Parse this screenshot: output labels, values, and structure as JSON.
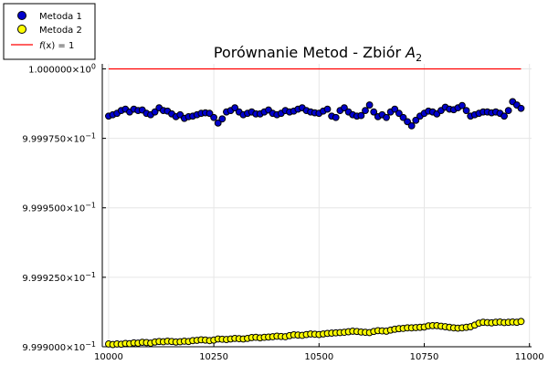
{
  "chart_data": {
    "type": "scatter",
    "title_text": "Porównanie Metod - Zbiór ",
    "title_symbol": "A",
    "title_subscript": "2",
    "xlabel": "",
    "ylabel": "",
    "xlim": [
      9985,
      11005
    ],
    "ylim": [
      0.9999,
      1.0000018
    ],
    "x_ticks": [
      10000,
      10250,
      10500,
      10750,
      11000
    ],
    "x_tick_labels": [
      "10000",
      "10250",
      "10500",
      "10750",
      "11000"
    ],
    "y_ticks": [
      0.9999,
      0.999925,
      0.99995,
      0.999975,
      1.0
    ],
    "y_tick_mantissas": [
      "9.999000",
      "9.999250",
      "9.999500",
      "9.999750",
      "1.000000"
    ],
    "y_tick_exponents": [
      "−1",
      "−1",
      "−1",
      "−1",
      "0"
    ],
    "y_tick_base": "×10",
    "grid": true,
    "legend_position": "top-left",
    "x": [
      10000,
      10010,
      10020,
      10030,
      10040,
      10050,
      10060,
      10070,
      10080,
      10090,
      10100,
      10110,
      10120,
      10130,
      10140,
      10150,
      10160,
      10170,
      10180,
      10190,
      10200,
      10210,
      10220,
      10230,
      10240,
      10250,
      10260,
      10270,
      10280,
      10290,
      10300,
      10310,
      10320,
      10330,
      10340,
      10350,
      10360,
      10370,
      10380,
      10390,
      10400,
      10410,
      10420,
      10430,
      10440,
      10450,
      10460,
      10470,
      10480,
      10490,
      10500,
      10510,
      10520,
      10530,
      10540,
      10550,
      10560,
      10570,
      10580,
      10590,
      10600,
      10610,
      10620,
      10630,
      10640,
      10650,
      10660,
      10670,
      10680,
      10690,
      10700,
      10710,
      10720,
      10730,
      10740,
      10750,
      10760,
      10770,
      10780,
      10790,
      10800,
      10810,
      10820,
      10830,
      10840,
      10850,
      10860,
      10870,
      10880,
      10890,
      10900,
      10910,
      10920,
      10930,
      10940,
      10950,
      10960,
      10970,
      10980
    ],
    "series": [
      {
        "name": "Metoda 1",
        "kind": "scatter",
        "fill": "#0000cc",
        "stroke": "#000000",
        "x": [
          10000,
          10010,
          10020,
          10030,
          10040,
          10050,
          10060,
          10070,
          10080,
          10090,
          10100,
          10110,
          10120,
          10130,
          10140,
          10150,
          10160,
          10170,
          10180,
          10190,
          10200,
          10210,
          10220,
          10230,
          10240,
          10250,
          10260,
          10270,
          10280,
          10290,
          10300,
          10310,
          10320,
          10330,
          10340,
          10350,
          10360,
          10370,
          10380,
          10390,
          10400,
          10410,
          10420,
          10430,
          10440,
          10450,
          10460,
          10470,
          10480,
          10490,
          10500,
          10510,
          10520,
          10530,
          10540,
          10550,
          10560,
          10570,
          10580,
          10590,
          10600,
          10610,
          10620,
          10630,
          10640,
          10650,
          10660,
          10670,
          10680,
          10690,
          10700,
          10710,
          10720,
          10730,
          10740,
          10750,
          10760,
          10770,
          10780,
          10790,
          10800,
          10810,
          10820,
          10830,
          10840,
          10850,
          10860,
          10870,
          10880,
          10890,
          10900,
          10910,
          10920,
          10930,
          10940,
          10950,
          10960,
          10970,
          10980
        ],
        "values": [
          0.999983,
          0.9999835,
          0.999984,
          0.999985,
          0.9999855,
          0.9999845,
          0.9999855,
          0.999985,
          0.9999852,
          0.999984,
          0.9999835,
          0.9999845,
          0.999986,
          0.999985,
          0.9999848,
          0.9999838,
          0.9999828,
          0.9999835,
          0.9999822,
          0.9999828,
          0.999983,
          0.9999835,
          0.999984,
          0.9999842,
          0.999984,
          0.9999825,
          0.9999805,
          0.999982,
          0.9999845,
          0.999985,
          0.999986,
          0.9999845,
          0.9999835,
          0.999984,
          0.9999845,
          0.9999838,
          0.9999838,
          0.9999845,
          0.9999852,
          0.999984,
          0.9999835,
          0.999984,
          0.999985,
          0.9999845,
          0.9999848,
          0.9999855,
          0.999986,
          0.999985,
          0.9999845,
          0.9999842,
          0.999984,
          0.9999848,
          0.9999855,
          0.999983,
          0.9999825,
          0.999985,
          0.999986,
          0.9999845,
          0.9999835,
          0.999983,
          0.9999832,
          0.999985,
          0.999987,
          0.9999845,
          0.9999828,
          0.9999835,
          0.9999825,
          0.9999845,
          0.9999855,
          0.999984,
          0.9999825,
          0.999981,
          0.9999795,
          0.9999815,
          0.999983,
          0.999984,
          0.9999848,
          0.9999845,
          0.9999838,
          0.999985,
          0.9999862,
          0.9999855,
          0.9999853,
          0.999986,
          0.9999868,
          0.999985,
          0.999983,
          0.9999835,
          0.999984,
          0.9999845,
          0.9999845,
          0.9999842,
          0.9999845,
          0.999984,
          0.999983,
          0.999985,
          0.9999882,
          0.999987,
          0.9999858
        ]
      },
      {
        "name": "Metoda 2",
        "kind": "scatter",
        "fill": "#ffff00",
        "stroke": "#000000",
        "x": [
          10000,
          10010,
          10020,
          10030,
          10040,
          10050,
          10060,
          10070,
          10080,
          10090,
          10100,
          10110,
          10120,
          10130,
          10140,
          10150,
          10160,
          10170,
          10180,
          10190,
          10200,
          10210,
          10220,
          10230,
          10240,
          10250,
          10260,
          10270,
          10280,
          10290,
          10300,
          10310,
          10320,
          10330,
          10340,
          10350,
          10360,
          10370,
          10380,
          10390,
          10400,
          10410,
          10420,
          10430,
          10440,
          10450,
          10460,
          10470,
          10480,
          10490,
          10500,
          10510,
          10520,
          10530,
          10540,
          10550,
          10560,
          10570,
          10580,
          10590,
          10600,
          10610,
          10620,
          10630,
          10640,
          10650,
          10660,
          10670,
          10680,
          10690,
          10700,
          10710,
          10720,
          10730,
          10740,
          10750,
          10760,
          10770,
          10780,
          10790,
          10800,
          10810,
          10820,
          10830,
          10840,
          10850,
          10860,
          10870,
          10880,
          10890,
          10900,
          10910,
          10920,
          10930,
          10940,
          10950,
          10960,
          10970,
          10980
        ],
        "values": [
          0.999901,
          0.9999008,
          0.999901,
          0.9999009,
          0.9999012,
          0.9999011,
          0.9999014,
          0.9999013,
          0.9999016,
          0.9999015,
          0.9999013,
          0.9999017,
          0.9999019,
          0.9999018,
          0.999902,
          0.9999019,
          0.9999017,
          0.9999018,
          0.999902,
          0.9999019,
          0.9999022,
          0.9999023,
          0.9999025,
          0.9999024,
          0.9999022,
          0.9999024,
          0.9999028,
          0.9999027,
          0.9999026,
          0.9999028,
          0.999903,
          0.9999029,
          0.9999028,
          0.999903,
          0.9999033,
          0.9999034,
          0.9999032,
          0.9999034,
          0.9999035,
          0.9999036,
          0.9999038,
          0.9999037,
          0.9999036,
          0.999904,
          0.9999043,
          0.9999042,
          0.9999041,
          0.9999044,
          0.9999046,
          0.9999045,
          0.9999044,
          0.9999046,
          0.9999048,
          0.9999049,
          0.999905,
          0.9999051,
          0.9999052,
          0.9999054,
          0.9999056,
          0.9999055,
          0.9999053,
          0.9999052,
          0.9999051,
          0.9999055,
          0.9999058,
          0.9999057,
          0.9999056,
          0.999906,
          0.9999063,
          0.9999065,
          0.9999066,
          0.9999068,
          0.9999068,
          0.9999069,
          0.999907,
          0.9999071,
          0.9999075,
          0.9999076,
          0.9999076,
          0.9999074,
          0.9999072,
          0.999907,
          0.9999068,
          0.9999067,
          0.9999068,
          0.999907,
          0.9999072,
          0.9999078,
          0.9999085,
          0.9999088,
          0.9999087,
          0.9999086,
          0.9999088,
          0.9999089,
          0.9999087,
          0.9999088,
          0.9999089,
          0.9999088,
          0.9999091
        ]
      },
      {
        "name_prefix": "f(x) = 1",
        "kind": "line",
        "stroke": "#ff0000",
        "x": [
          10000,
          10980
        ],
        "values": [
          1.0,
          1.0
        ]
      }
    ],
    "legend_label_func": "f",
    "legend_label_rest": "(x) = 1"
  }
}
